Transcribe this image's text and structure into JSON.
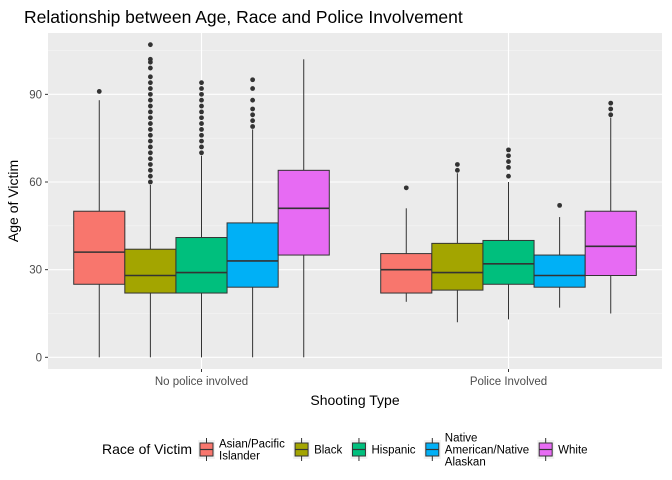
{
  "chart_data": {
    "type": "boxplot",
    "title": "Relationship between Age, Race and Police Involvement",
    "xlabel": "Shooting Type",
    "ylabel": "Age of Victim",
    "ylim": [
      -4,
      111
    ],
    "yticks": [
      0,
      30,
      60,
      90
    ],
    "grid": true,
    "legend_position": "bottom",
    "legend_title": "Race of Victim",
    "categories": [
      "No police involved",
      "Police Involved"
    ],
    "series": [
      {
        "name": "Asian/Pacific Islander",
        "legend_lines": [
          "Asian/Pacific",
          "Islander"
        ],
        "color": "#F8766D",
        "boxes": [
          {
            "whisker_low": 0,
            "q1": 25,
            "median": 36,
            "q3": 50,
            "whisker_high": 88,
            "outliers": [
              91
            ]
          },
          {
            "whisker_low": 19,
            "q1": 22,
            "median": 30,
            "q3": 35.5,
            "whisker_high": 51,
            "outliers": [
              58
            ]
          }
        ]
      },
      {
        "name": "Black",
        "legend_lines": [
          "Black"
        ],
        "color": "#A3A500",
        "boxes": [
          {
            "whisker_low": 0,
            "q1": 22,
            "median": 28,
            "q3": 37,
            "whisker_high": 59,
            "outliers": [
              60,
              62,
              64,
              66,
              68,
              70,
              72,
              74,
              76,
              78,
              80,
              82,
              84,
              86,
              88,
              90,
              92,
              94,
              96,
              99,
              101,
              102,
              107
            ]
          },
          {
            "whisker_low": 12,
            "q1": 23,
            "median": 29,
            "q3": 39,
            "whisker_high": 63,
            "outliers": [
              64,
              66
            ]
          }
        ]
      },
      {
        "name": "Hispanic",
        "legend_lines": [
          "Hispanic"
        ],
        "color": "#00BF7D",
        "boxes": [
          {
            "whisker_low": 0,
            "q1": 22,
            "median": 29,
            "q3": 41,
            "whisker_high": 69,
            "outliers": [
              70,
              72,
              74,
              76,
              78,
              80,
              82,
              84,
              86,
              88,
              90,
              92,
              94
            ]
          },
          {
            "whisker_low": 13,
            "q1": 25,
            "median": 32,
            "q3": 40,
            "whisker_high": 60,
            "outliers": [
              62,
              65,
              67,
              69,
              71
            ]
          }
        ]
      },
      {
        "name": "Native American/Native Alaskan",
        "legend_lines": [
          "Native",
          "American/Native",
          "Alaskan"
        ],
        "color": "#00B0F6",
        "boxes": [
          {
            "whisker_low": 0,
            "q1": 24,
            "median": 33,
            "q3": 46,
            "whisker_high": 78,
            "outliers": [
              79,
              81,
              83,
              85,
              88,
              92,
              95
            ]
          },
          {
            "whisker_low": 17,
            "q1": 24,
            "median": 28,
            "q3": 35,
            "whisker_high": 48,
            "outliers": [
              52
            ]
          }
        ]
      },
      {
        "name": "White",
        "legend_lines": [
          "White"
        ],
        "color": "#E76BF3",
        "boxes": [
          {
            "whisker_low": 0,
            "q1": 35,
            "median": 51,
            "q3": 64,
            "whisker_high": 102,
            "outliers": []
          },
          {
            "whisker_low": 15,
            "q1": 28,
            "median": 38,
            "q3": 50,
            "whisker_high": 82,
            "outliers": [
              83,
              85,
              87
            ]
          }
        ]
      }
    ]
  }
}
